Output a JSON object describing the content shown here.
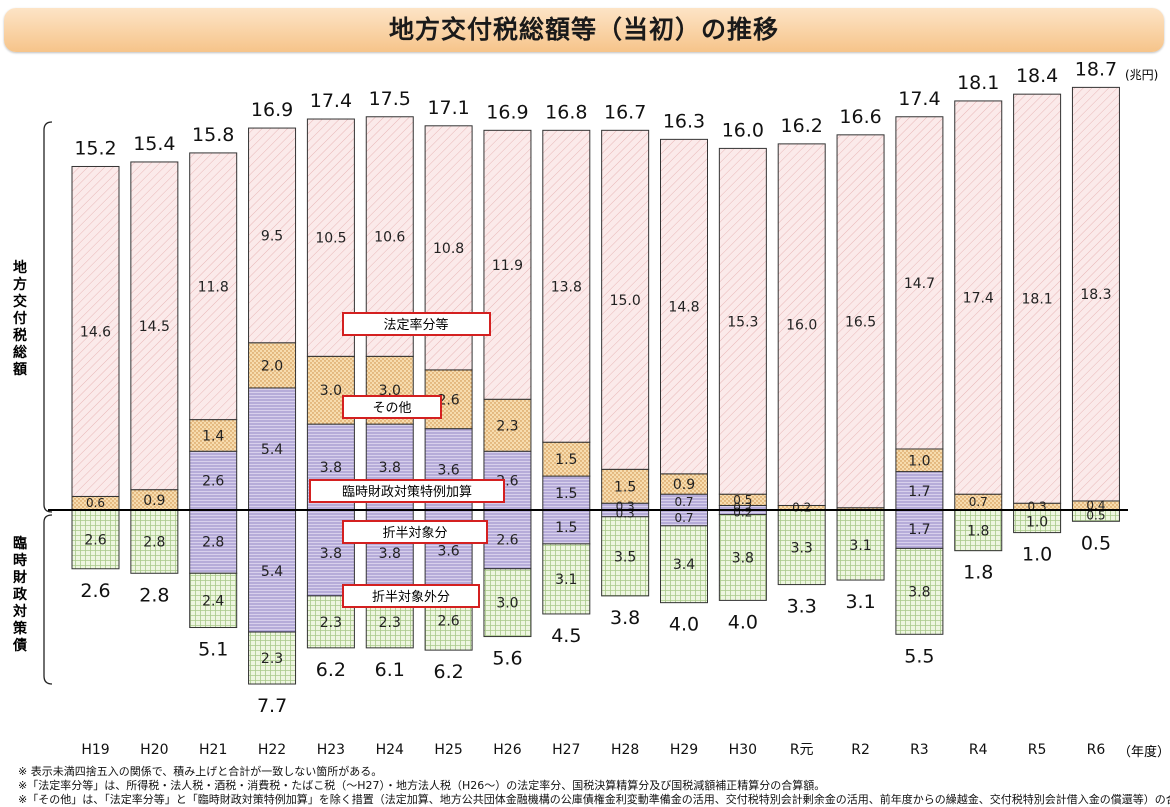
{
  "title": "地方交付税総額等（当初）の推移",
  "unit": "(兆円)",
  "x_axis_unit": "（年度）",
  "left_labels": {
    "upper": "地方交付税総額",
    "lower": "臨時財政対策債"
  },
  "callouts": {
    "hotei": "法定率分等",
    "sonota": "その他",
    "rinzai_kasan": "臨時財政対策特例加算",
    "seppan": "折半対象分",
    "seppangai": "折半対象外分"
  },
  "notes": [
    "※ 表示未満四捨五入の関係で、積み上げと合計が一致しない箇所がある。",
    "※「法定率分等」は、所得税・法人税・酒税・消費税・たばこ税（～H27）・地方法人税（H26～）の法定率分、国税決算精算分及び国税減額補正精算分の合算額。",
    "※「その他」は、「法定率分等」と「臨時財政対策特例加算」を除く措置（法定加算、地方公共団体金融機構の公庫債権金利変動準備金の活用、交付税特別会計剰余金の活用、前年度からの繰越金、交付税特別会計借入金の償還等）の合算額。"
  ],
  "colors": {
    "hotei": "#fbeaea",
    "sonota": "#f7dcae",
    "rinzai_kasan": "#d8d0ec",
    "seppangai": "#e9f3d4",
    "callout_border": "#d42020",
    "title_bg": "#f6c48a"
  },
  "chart_data": {
    "type": "bar",
    "subtype": "stacked-diverging",
    "unit": "兆円",
    "categories": [
      "H19",
      "H20",
      "H21",
      "H22",
      "H23",
      "H24",
      "H25",
      "H26",
      "H27",
      "H28",
      "H29",
      "H30",
      "R元",
      "R2",
      "R3",
      "R4",
      "R5",
      "R6"
    ],
    "upper_totals": [
      "15.2",
      "15.4",
      "15.8",
      "16.9",
      "17.4",
      "17.5",
      "17.1",
      "16.9",
      "16.8",
      "16.7",
      "16.3",
      "16.0",
      "16.2",
      "16.6",
      "17.4",
      "18.1",
      "18.4",
      "18.7"
    ],
    "lower_totals": [
      "2.6",
      "2.8",
      "5.1",
      "7.7",
      "6.2",
      "6.1",
      "6.2",
      "5.6",
      "4.5",
      "3.8",
      "4.0",
      "4.0",
      "3.3",
      "3.1",
      "5.5",
      "1.8",
      "1.0",
      "0.5"
    ],
    "upper_series": [
      {
        "name": "臨時財政対策特例加算",
        "key": "rinzai_kasan",
        "values": [
          0,
          0,
          2.6,
          5.4,
          3.8,
          3.8,
          3.6,
          2.6,
          1.5,
          0.3,
          0.7,
          0.2,
          0,
          0,
          1.7,
          0,
          0,
          0
        ]
      },
      {
        "name": "その他",
        "key": "sonota",
        "values": [
          0.6,
          0.9,
          1.4,
          2.0,
          3.0,
          3.0,
          2.6,
          2.3,
          1.5,
          1.5,
          0.9,
          0.5,
          0.2,
          0.1,
          1.0,
          0.7,
          0.3,
          0.4
        ]
      },
      {
        "name": "法定率分等",
        "key": "hotei",
        "values": [
          14.6,
          14.5,
          11.8,
          9.5,
          10.5,
          10.6,
          10.8,
          11.9,
          13.8,
          15.0,
          14.8,
          15.3,
          16.0,
          16.5,
          14.7,
          17.4,
          18.1,
          18.3
        ]
      }
    ],
    "lower_series": [
      {
        "name": "折半対象分",
        "key": "rinzai_kasan",
        "values": [
          0,
          0,
          2.8,
          5.4,
          3.8,
          3.8,
          3.6,
          2.6,
          1.5,
          0.3,
          0.7,
          0.2,
          0,
          0,
          1.7,
          0,
          0,
          0
        ]
      },
      {
        "name": "折半対象外分",
        "key": "seppangai",
        "values": [
          2.6,
          2.8,
          2.4,
          2.3,
          2.3,
          2.3,
          2.6,
          3.0,
          3.1,
          3.5,
          3.4,
          3.8,
          3.3,
          3.1,
          3.8,
          1.8,
          1.0,
          0.5
        ]
      }
    ],
    "labels": {
      "upper": [
        [
          "",
          "0.6",
          "14.6"
        ],
        [
          "",
          "0.9",
          "14.5"
        ],
        [
          "2.6",
          "1.4",
          "11.8"
        ],
        [
          "5.4",
          "2.0",
          "9.5"
        ],
        [
          "3.8",
          "3.0",
          "10.5"
        ],
        [
          "3.8",
          "3.0",
          "10.6"
        ],
        [
          "3.6",
          "2.6",
          "10.8"
        ],
        [
          "2.6",
          "2.3",
          "11.9"
        ],
        [
          "1.5",
          "1.5",
          "13.8"
        ],
        [
          "0.3",
          "1.5",
          "15.0"
        ],
        [
          "0.7",
          "0.9",
          "14.8"
        ],
        [
          "0.2",
          "0.5",
          "15.3"
        ],
        [
          "",
          "0.2",
          "16.0"
        ],
        [
          "",
          "",
          "16.5"
        ],
        [
          "1.7",
          "1.0",
          "14.7"
        ],
        [
          "",
          "0.7",
          "17.4"
        ],
        [
          "",
          "0.3",
          "18.1"
        ],
        [
          "",
          "0.4",
          "18.3"
        ]
      ],
      "lower": [
        [
          "",
          "2.6"
        ],
        [
          "",
          "2.8"
        ],
        [
          "2.8",
          "2.4"
        ],
        [
          "5.4",
          "2.3"
        ],
        [
          "3.8",
          "2.3"
        ],
        [
          "3.8",
          "2.3"
        ],
        [
          "3.6",
          "2.6"
        ],
        [
          "2.6",
          "3.0"
        ],
        [
          "1.5",
          "3.1"
        ],
        [
          "0.3",
          "3.5"
        ],
        [
          "0.7",
          "3.4"
        ],
        [
          "0.2",
          "3.8"
        ],
        [
          "",
          "3.3"
        ],
        [
          "",
          "3.1"
        ],
        [
          "1.7",
          "3.8"
        ],
        [
          "",
          "1.8"
        ],
        [
          "",
          "1.0"
        ],
        [
          "",
          "0.5"
        ]
      ]
    }
  }
}
